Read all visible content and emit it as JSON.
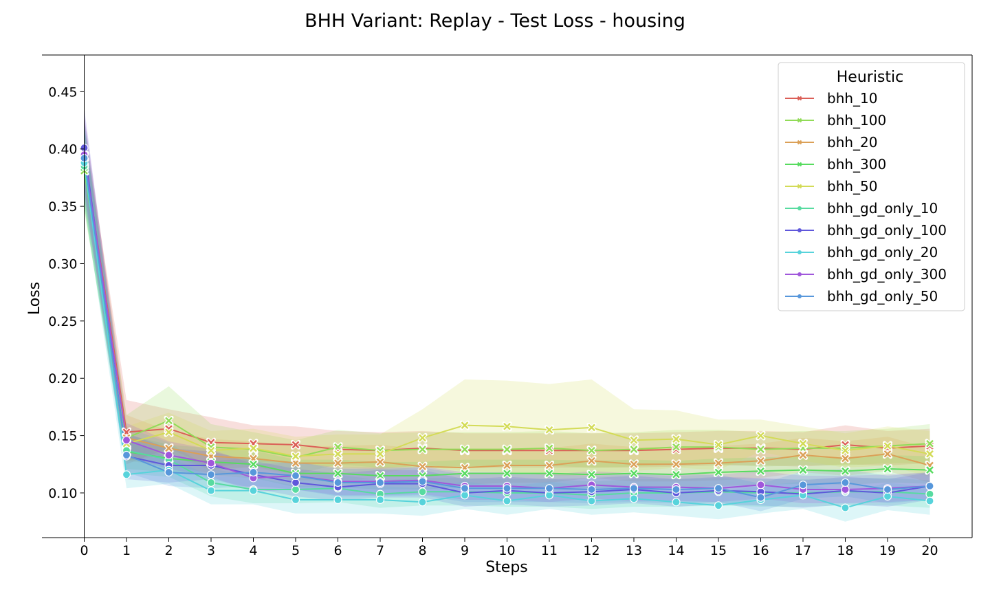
{
  "chart_data": {
    "type": "line",
    "title": "BHH Variant: Replay - Test Loss - housing",
    "xlabel": "Steps",
    "ylabel": "Loss",
    "xlim": [
      -1,
      21
    ],
    "ylim": [
      0.061,
      0.482
    ],
    "x_ticks": [
      0,
      1,
      2,
      3,
      4,
      5,
      6,
      7,
      8,
      9,
      10,
      11,
      12,
      13,
      14,
      15,
      16,
      17,
      18,
      19,
      20
    ],
    "y_ticks": [
      0.1,
      0.15,
      0.2,
      0.25,
      0.3,
      0.35,
      0.4,
      0.45
    ],
    "y_tick_labels": [
      "0.10",
      "0.15",
      "0.20",
      "0.25",
      "0.30",
      "0.35",
      "0.40",
      "0.45"
    ],
    "legend": {
      "title": "Heuristic",
      "placement": "top-right"
    },
    "grid": false,
    "x": [
      0,
      1,
      2,
      3,
      4,
      5,
      6,
      7,
      8,
      9,
      10,
      11,
      12,
      13,
      14,
      15,
      16,
      17,
      18,
      19,
      20
    ],
    "series": [
      {
        "name": "bhh_10",
        "color": "#db5f57",
        "marker": "x",
        "values": [
          0.394,
          0.153,
          0.156,
          0.144,
          0.143,
          0.142,
          0.138,
          0.137,
          0.139,
          0.137,
          0.137,
          0.137,
          0.137,
          0.137,
          0.138,
          0.139,
          0.139,
          0.138,
          0.142,
          0.139,
          0.141
        ],
        "band": [
          0.025,
          0.028,
          0.017,
          0.022,
          0.016,
          0.016,
          0.016,
          0.016,
          0.015,
          0.015,
          0.015,
          0.015,
          0.015,
          0.015,
          0.015,
          0.015,
          0.015,
          0.015,
          0.017,
          0.015,
          0.015
        ]
      },
      {
        "name": "bhh_100",
        "color": "#91db57",
        "marker": "x",
        "values": [
          0.381,
          0.148,
          0.163,
          0.14,
          0.138,
          0.131,
          0.14,
          0.137,
          0.138,
          0.138,
          0.138,
          0.139,
          0.137,
          0.138,
          0.14,
          0.14,
          0.138,
          0.139,
          0.139,
          0.141,
          0.143
        ],
        "band": [
          0.035,
          0.02,
          0.03,
          0.02,
          0.015,
          0.015,
          0.015,
          0.015,
          0.015,
          0.015,
          0.015,
          0.015,
          0.015,
          0.015,
          0.015,
          0.015,
          0.015,
          0.015,
          0.015,
          0.015,
          0.017
        ]
      },
      {
        "name": "bhh_20",
        "color": "#dba057",
        "marker": "x",
        "values": [
          0.393,
          0.148,
          0.139,
          0.132,
          0.13,
          0.126,
          0.126,
          0.127,
          0.123,
          0.122,
          0.124,
          0.124,
          0.128,
          0.125,
          0.125,
          0.126,
          0.128,
          0.133,
          0.13,
          0.134,
          0.124
        ],
        "band": [
          0.035,
          0.02,
          0.015,
          0.015,
          0.015,
          0.015,
          0.015,
          0.015,
          0.015,
          0.015,
          0.015,
          0.015,
          0.015,
          0.015,
          0.015,
          0.015,
          0.015,
          0.015,
          0.015,
          0.015,
          0.015
        ]
      },
      {
        "name": "bhh_300",
        "color": "#57db5f",
        "marker": "x",
        "values": [
          0.384,
          0.136,
          0.13,
          0.127,
          0.125,
          0.117,
          0.117,
          0.115,
          0.115,
          0.117,
          0.117,
          0.117,
          0.116,
          0.117,
          0.116,
          0.118,
          0.119,
          0.12,
          0.119,
          0.121,
          0.12
        ],
        "band": [
          0.035,
          0.015,
          0.012,
          0.012,
          0.012,
          0.012,
          0.012,
          0.012,
          0.012,
          0.012,
          0.012,
          0.012,
          0.012,
          0.012,
          0.012,
          0.012,
          0.012,
          0.012,
          0.012,
          0.012,
          0.012
        ]
      },
      {
        "name": "bhh_50",
        "color": "#d3db57",
        "marker": "x",
        "values": [
          0.388,
          0.143,
          0.153,
          0.137,
          0.139,
          0.132,
          0.134,
          0.134,
          0.148,
          0.159,
          0.158,
          0.155,
          0.157,
          0.146,
          0.147,
          0.142,
          0.15,
          0.143,
          0.137,
          0.141,
          0.134
        ],
        "band": [
          0.035,
          0.015,
          0.017,
          0.017,
          0.017,
          0.017,
          0.017,
          0.017,
          0.025,
          0.04,
          0.04,
          0.04,
          0.042,
          0.027,
          0.025,
          0.022,
          0.014,
          0.015,
          0.015,
          0.017,
          0.02
        ]
      },
      {
        "name": "bhh_gd_only_10",
        "color": "#57dba0",
        "marker": "o",
        "values": [
          0.385,
          0.137,
          0.129,
          0.109,
          0.103,
          0.103,
          0.104,
          0.099,
          0.101,
          0.101,
          0.1,
          0.1,
          0.098,
          0.1,
          0.1,
          0.101,
          0.1,
          0.1,
          0.101,
          0.101,
          0.099
        ],
        "band": [
          0.035,
          0.02,
          0.015,
          0.012,
          0.012,
          0.012,
          0.012,
          0.012,
          0.012,
          0.012,
          0.012,
          0.012,
          0.012,
          0.012,
          0.012,
          0.012,
          0.012,
          0.012,
          0.012,
          0.012,
          0.012
        ]
      },
      {
        "name": "bhh_gd_only_100",
        "color": "#5f57db",
        "marker": "o",
        "values": [
          0.401,
          0.132,
          0.124,
          0.124,
          0.116,
          0.109,
          0.105,
          0.108,
          0.108,
          0.1,
          0.102,
          0.1,
          0.101,
          0.103,
          0.1,
          0.102,
          0.101,
          0.099,
          0.102,
          0.1,
          0.106
        ],
        "band": [
          0.035,
          0.02,
          0.015,
          0.012,
          0.012,
          0.012,
          0.012,
          0.012,
          0.012,
          0.012,
          0.012,
          0.012,
          0.012,
          0.012,
          0.012,
          0.012,
          0.012,
          0.012,
          0.012,
          0.012,
          0.012
        ]
      },
      {
        "name": "bhh_gd_only_20",
        "color": "#57d3db",
        "marker": "o",
        "values": [
          0.388,
          0.116,
          0.12,
          0.102,
          0.102,
          0.094,
          0.094,
          0.094,
          0.092,
          0.098,
          0.093,
          0.098,
          0.093,
          0.095,
          0.092,
          0.089,
          0.094,
          0.098,
          0.087,
          0.097,
          0.093
        ],
        "band": [
          0.035,
          0.012,
          0.012,
          0.012,
          0.012,
          0.012,
          0.012,
          0.012,
          0.012,
          0.012,
          0.012,
          0.012,
          0.012,
          0.012,
          0.012,
          0.012,
          0.012,
          0.012,
          0.012,
          0.012,
          0.012
        ]
      },
      {
        "name": "bhh_gd_only_300",
        "color": "#a057db",
        "marker": "o",
        "values": [
          0.395,
          0.146,
          0.133,
          0.126,
          0.113,
          0.115,
          0.11,
          0.11,
          0.111,
          0.106,
          0.106,
          0.104,
          0.107,
          0.105,
          0.105,
          0.104,
          0.107,
          0.103,
          0.103,
          0.104,
          0.106
        ],
        "band": [
          0.035,
          0.015,
          0.012,
          0.012,
          0.012,
          0.012,
          0.012,
          0.012,
          0.012,
          0.012,
          0.012,
          0.012,
          0.012,
          0.012,
          0.012,
          0.012,
          0.012,
          0.012,
          0.012,
          0.012,
          0.012
        ]
      },
      {
        "name": "bhh_gd_only_50",
        "color": "#5797db",
        "marker": "o",
        "values": [
          0.392,
          0.133,
          0.118,
          0.116,
          0.118,
          0.115,
          0.109,
          0.109,
          0.11,
          0.104,
          0.104,
          0.104,
          0.103,
          0.104,
          0.103,
          0.104,
          0.096,
          0.107,
          0.109,
          0.103,
          0.106
        ],
        "band": [
          0.035,
          0.015,
          0.012,
          0.012,
          0.012,
          0.012,
          0.012,
          0.012,
          0.012,
          0.012,
          0.012,
          0.012,
          0.012,
          0.012,
          0.012,
          0.012,
          0.012,
          0.012,
          0.012,
          0.012,
          0.012
        ]
      }
    ]
  }
}
